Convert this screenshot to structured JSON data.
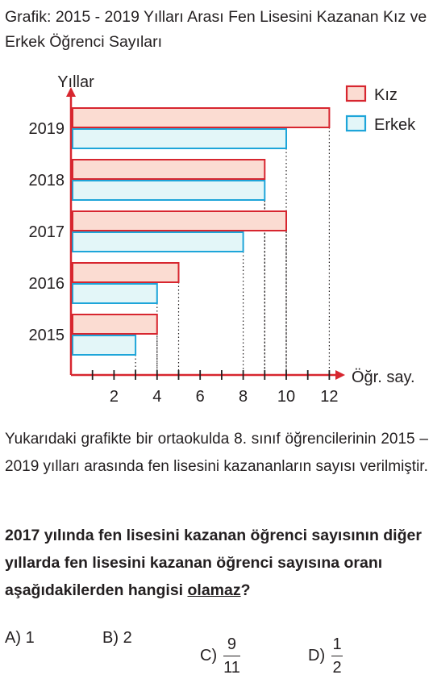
{
  "title": "Grafik: 2015 - 2019 Yılları Arası Fen Lisesini Kazanan Kız ve Erkek Öğrenci Sayıları",
  "chart_data": {
    "type": "bar",
    "orientation": "horizontal",
    "categories": [
      "2015",
      "2016",
      "2017",
      "2018",
      "2019"
    ],
    "series": [
      {
        "name": "Kız",
        "values": [
          4,
          5,
          10,
          9,
          12
        ],
        "color": "#fbdcd2",
        "stroke": "#d7262f"
      },
      {
        "name": "Erkek",
        "values": [
          3,
          4,
          8,
          9,
          10
        ],
        "color": "#e3f6f8",
        "stroke": "#1ea5d9"
      }
    ],
    "ylabel": "Yıllar",
    "xlabel": "Öğr. say.",
    "xticks": [
      2,
      4,
      6,
      8,
      10,
      12
    ],
    "xlim": [
      0,
      12
    ],
    "legend": "top-right",
    "grid": false
  },
  "paragraph": "Yukarıdaki grafikte bir ortaokulda 8. sınıf öğrencilerinin 2015 – 2019 yılları arasında fen lisesini kazananların sayısı verilmiştir.",
  "question": {
    "before": "2017 yılında fen lisesini kazanan öğrenci sayısının diğer yıllarda fen lisesini kazanan öğrenci sayısına oranı aşağıdakilerden hangisi ",
    "emphasis": "olamaz",
    "after": "?"
  },
  "options": {
    "a": {
      "label": "A)",
      "value": "1"
    },
    "b": {
      "label": "B)",
      "value": "2"
    },
    "c": {
      "label": "C)",
      "numerator": "9",
      "denominator": "11"
    },
    "d": {
      "label": "D)",
      "numerator": "1",
      "denominator": "2"
    }
  }
}
